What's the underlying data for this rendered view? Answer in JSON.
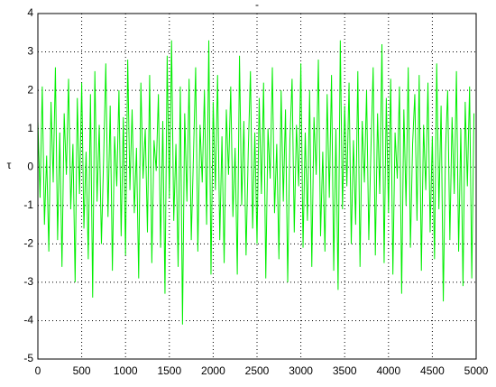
{
  "chart_data": {
    "type": "line",
    "title": "-",
    "y_label": "τ",
    "color": "#00ee00",
    "grid": true,
    "xlim": [
      0,
      5000
    ],
    "xticks": [
      0,
      500,
      1000,
      1500,
      2000,
      2500,
      3000,
      3500,
      4000,
      4500,
      5000
    ],
    "ylim": [
      -5,
      4
    ],
    "yticks": [
      -5,
      -4,
      -3,
      -2,
      -1,
      0,
      1,
      2,
      3,
      4
    ],
    "x": [
      0,
      25,
      50,
      75,
      100,
      125,
      150,
      175,
      200,
      225,
      250,
      275,
      300,
      325,
      350,
      375,
      400,
      425,
      450,
      475,
      500,
      525,
      550,
      575,
      600,
      625,
      650,
      675,
      700,
      725,
      750,
      775,
      800,
      825,
      850,
      875,
      900,
      925,
      950,
      975,
      1000,
      1025,
      1050,
      1075,
      1100,
      1125,
      1150,
      1175,
      1200,
      1225,
      1250,
      1275,
      1300,
      1325,
      1350,
      1375,
      1400,
      1425,
      1450,
      1475,
      1500,
      1525,
      1550,
      1575,
      1600,
      1625,
      1650,
      1675,
      1700,
      1725,
      1750,
      1775,
      1800,
      1825,
      1850,
      1875,
      1900,
      1925,
      1950,
      1975,
      2000,
      2025,
      2050,
      2075,
      2100,
      2125,
      2150,
      2175,
      2200,
      2225,
      2250,
      2275,
      2300,
      2325,
      2350,
      2375,
      2400,
      2425,
      2450,
      2475,
      2500,
      2525,
      2550,
      2575,
      2600,
      2625,
      2650,
      2675,
      2700,
      2725,
      2750,
      2775,
      2800,
      2825,
      2850,
      2875,
      2900,
      2925,
      2950,
      2975,
      3000,
      3025,
      3050,
      3075,
      3100,
      3125,
      3150,
      3175,
      3200,
      3225,
      3250,
      3275,
      3300,
      3325,
      3350,
      3375,
      3400,
      3425,
      3450,
      3475,
      3500,
      3525,
      3550,
      3575,
      3600,
      3625,
      3650,
      3675,
      3700,
      3725,
      3750,
      3775,
      3800,
      3825,
      3850,
      3875,
      3900,
      3925,
      3950,
      3975,
      4000,
      4025,
      4050,
      4075,
      4100,
      4125,
      4150,
      4175,
      4200,
      4225,
      4250,
      4275,
      4300,
      4325,
      4350,
      4375,
      4400,
      4425,
      4450,
      4475,
      4500,
      4525,
      4550,
      4575,
      4600,
      4625,
      4650,
      4675,
      4700,
      4725,
      4750,
      4775,
      4800,
      4825,
      4850,
      4875,
      4900,
      4925,
      4950,
      4975
    ],
    "values": [
      1.2,
      -0.8,
      2.1,
      -1.5,
      0.3,
      -2.2,
      1.7,
      -0.4,
      2.6,
      -1.9,
      0.9,
      -2.6,
      1.4,
      -0.2,
      2.3,
      -1.1,
      0.6,
      -3.0,
      1.8,
      -0.7,
      2.2,
      -1.6,
      0.4,
      -2.4,
      1.9,
      -3.4,
      2.5,
      -0.9,
      1.1,
      -2.0,
      0.2,
      2.7,
      -1.3,
      1.6,
      -2.7,
      0.8,
      -0.5,
      2.0,
      -1.8,
      1.3,
      -2.3,
      2.8,
      -0.6,
      1.5,
      -1.2,
      0.5,
      -2.9,
      2.2,
      -0.3,
      1.0,
      -1.7,
      2.4,
      -2.5,
      0.7,
      -0.1,
      1.9,
      -2.1,
      1.2,
      -3.3,
      2.9,
      -0.8,
      3.3,
      -1.4,
      0.6,
      -2.6,
      2.1,
      -4.1,
      1.4,
      -0.9,
      2.3,
      -1.9,
      0.3,
      2.6,
      -2.2,
      1.1,
      -0.4,
      2.0,
      -1.5,
      3.3,
      -2.8,
      1.7,
      -0.6,
      2.4,
      -1.9,
      0.8,
      -2.5,
      1.5,
      -0.2,
      2.1,
      -1.3,
      0.5,
      -2.8,
      2.9,
      -1.0,
      1.2,
      -2.3,
      0.4,
      2.5,
      -1.6,
      0.9,
      -2.0,
      1.8,
      -0.7,
      2.2,
      -2.9,
      1.0,
      -0.3,
      2.6,
      -1.2,
      0.6,
      -2.4,
      2.0,
      -0.9,
      1.5,
      -3.0,
      0.7,
      2.3,
      -1.7,
      1.1,
      -0.5,
      2.7,
      -2.1,
      0.9,
      -1.4,
      2.0,
      -2.6,
      1.3,
      -0.2,
      2.8,
      -1.8,
      0.4,
      -2.2,
      1.9,
      -0.8,
      2.4,
      -2.7,
      1.0,
      -3.2,
      3.3,
      -1.1,
      1.6,
      -0.5,
      2.2,
      -2.0,
      0.7,
      -1.5,
      2.5,
      -2.6,
      1.2,
      -0.4,
      2.0,
      -1.9,
      0.5,
      2.6,
      -2.3,
      1.4,
      -0.7,
      3.2,
      -2.5,
      1.8,
      -1.2,
      2.3,
      -2.8,
      0.9,
      -0.3,
      2.1,
      -3.3,
      1.5,
      -1.0,
      2.6,
      -2.1,
      0.6,
      1.9,
      -1.4,
      2.4,
      -2.7,
      1.1,
      -0.6,
      2.2,
      -1.7,
      0.8,
      -2.4,
      2.7,
      -1.1,
      1.6,
      -3.5,
      0.4,
      2.0,
      -1.9,
      1.3,
      -0.7,
      2.5,
      -2.2,
      1.0,
      -3.1,
      1.7,
      -0.5,
      2.1,
      -2.9,
      1.4
    ]
  }
}
